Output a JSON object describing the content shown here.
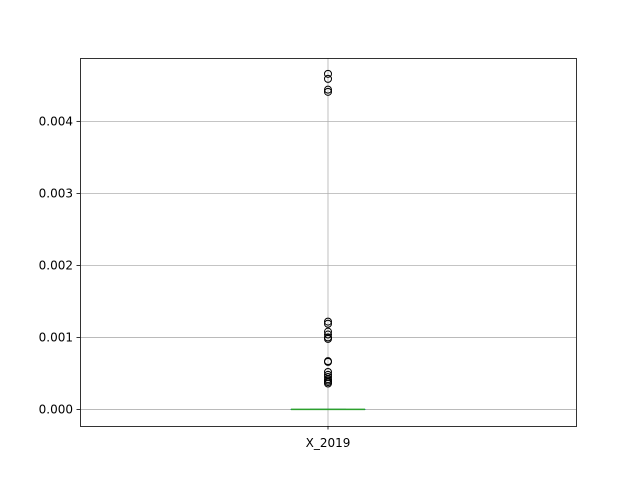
{
  "chart_data": {
    "type": "box",
    "categories": [
      "X_2019"
    ],
    "ylim": [
      -0.00023,
      0.00488
    ],
    "yticks": [
      0.0,
      0.001,
      0.002,
      0.003,
      0.004
    ],
    "ytick_labels": [
      "0.000",
      "0.001",
      "0.002",
      "0.003",
      "0.004"
    ],
    "grid": true,
    "series": [
      {
        "category": "X_2019",
        "min": 0.0,
        "q1": 0.0,
        "median": 0.0,
        "q3": 0.0,
        "max": 0.0,
        "outliers": [
          0.00466,
          0.00459,
          0.00444,
          0.00441,
          0.00122,
          0.00119,
          0.00108,
          0.00104,
          0.001,
          0.00098,
          0.00067,
          0.00066,
          0.00052,
          0.00048,
          0.00045,
          0.00042,
          0.0004,
          0.00038,
          0.00036
        ]
      }
    ],
    "colors": {
      "box": "#1f77b4",
      "median": "#2ca02c",
      "outlier": "#000000",
      "grid": "#b0b0b0"
    }
  }
}
